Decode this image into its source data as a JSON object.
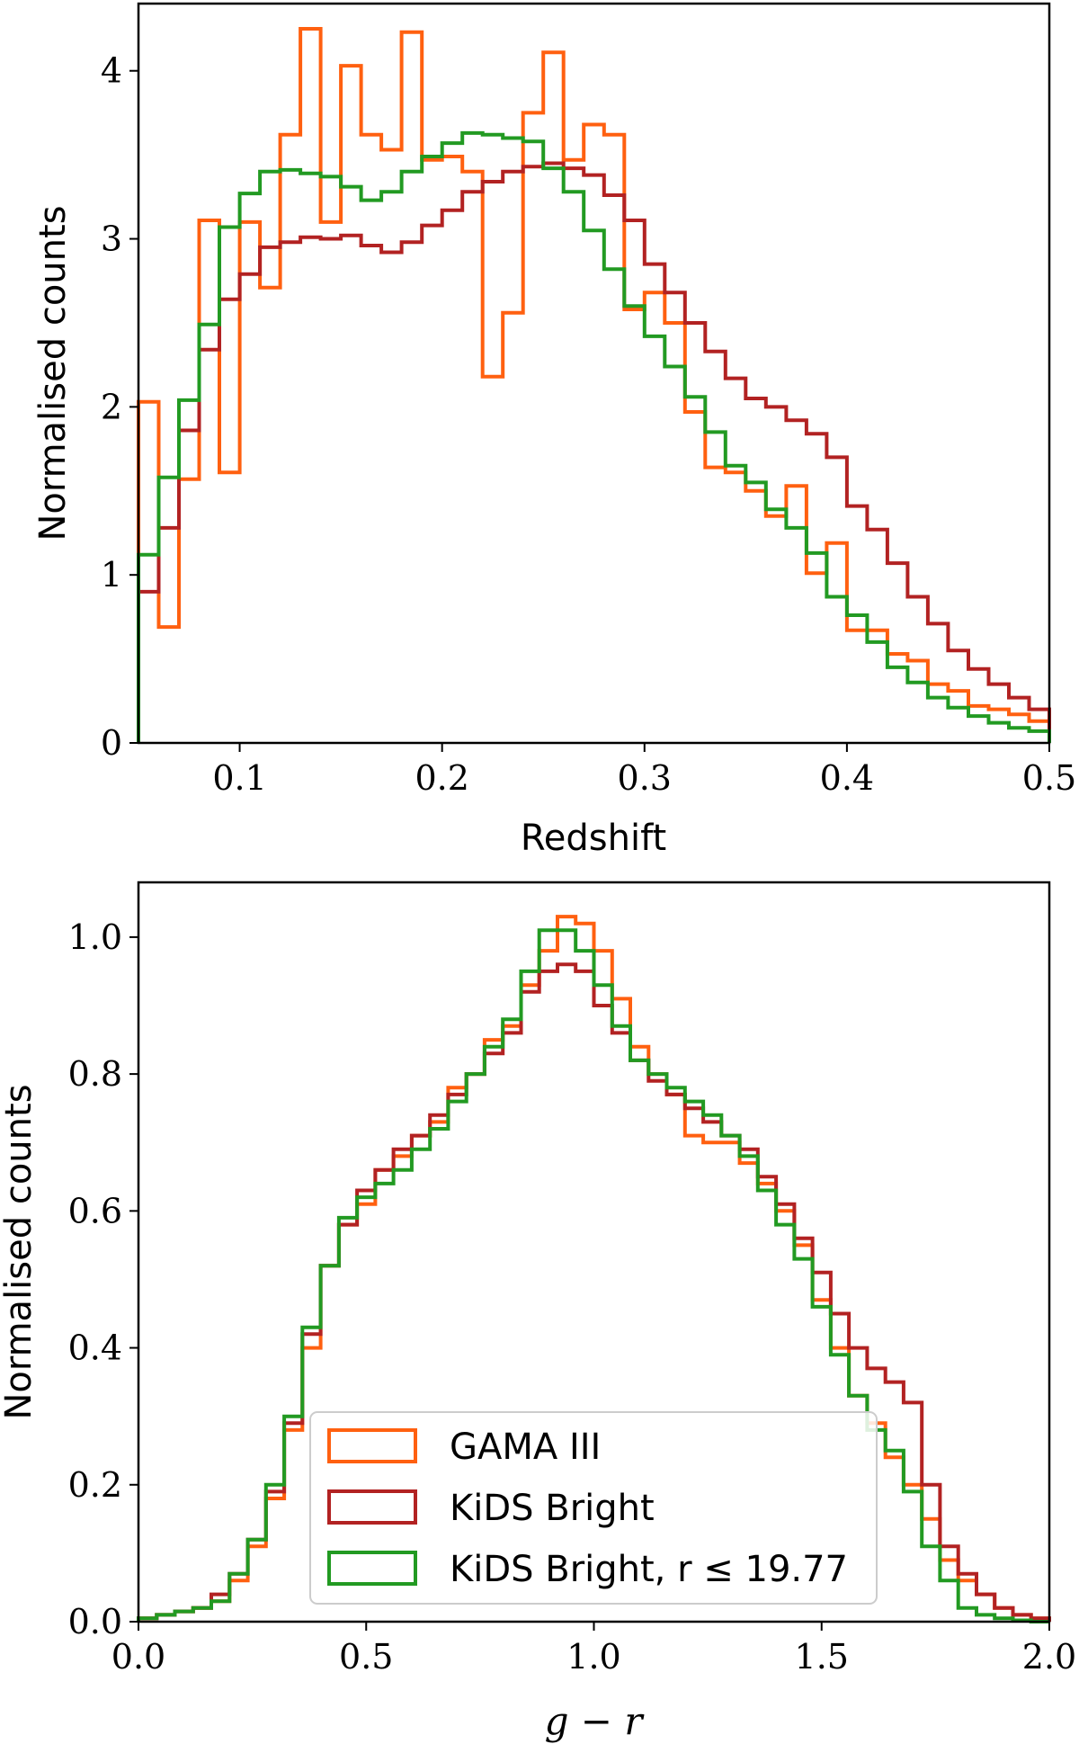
{
  "colors": {
    "gama": "#ff6010",
    "kids": "#b22222",
    "kids_cut": "#229a22"
  },
  "legend": {
    "items": [
      {
        "label": "GAMA III",
        "series": "gama"
      },
      {
        "label": "KiDS Bright",
        "series": "kids"
      },
      {
        "label": "KiDS Bright, r ≤ 19.77",
        "series": "kids_cut"
      }
    ]
  },
  "chart_data": [
    {
      "type": "histogram",
      "title": "",
      "xlabel": "Redshift",
      "ylabel": "Normalised counts",
      "xlim": [
        0.05,
        0.5
      ],
      "ylim": [
        0,
        4.4
      ],
      "xticks": [
        0.1,
        0.2,
        0.3,
        0.4,
        0.5
      ],
      "xtick_labels": [
        "0.1",
        "0.2",
        "0.3",
        "0.4",
        "0.5"
      ],
      "yticks": [
        0,
        1,
        2,
        3,
        4
      ],
      "ytick_labels": [
        "0",
        "1",
        "2",
        "3",
        "4"
      ],
      "bin_start": 0.05,
      "bin_width": 0.01,
      "series": [
        {
          "name": "GAMA III",
          "key": "gama",
          "values": [
            2.03,
            0.69,
            1.57,
            3.11,
            1.61,
            3.1,
            2.71,
            3.62,
            4.25,
            3.1,
            4.03,
            3.62,
            3.53,
            4.23,
            3.47,
            3.49,
            3.4,
            2.18,
            2.56,
            3.75,
            4.11,
            3.47,
            3.68,
            3.62,
            2.58,
            2.68,
            2.5,
            1.97,
            1.64,
            1.61,
            1.5,
            1.35,
            1.53,
            1.01,
            1.19,
            0.67,
            0.67,
            0.53,
            0.49,
            0.35,
            0.31,
            0.22,
            0.2,
            0.17,
            0.13
          ]
        },
        {
          "name": "KiDS Bright",
          "key": "kids",
          "values": [
            0.9,
            1.28,
            1.86,
            2.34,
            2.64,
            2.79,
            2.95,
            2.98,
            3.01,
            3.0,
            3.02,
            2.96,
            2.92,
            2.98,
            3.08,
            3.17,
            3.28,
            3.34,
            3.4,
            3.43,
            3.45,
            3.42,
            3.38,
            3.26,
            3.11,
            2.85,
            2.68,
            2.5,
            2.33,
            2.17,
            2.05,
            2.0,
            1.92,
            1.84,
            1.7,
            1.41,
            1.27,
            1.07,
            0.87,
            0.71,
            0.55,
            0.44,
            0.35,
            0.27,
            0.2
          ]
        },
        {
          "name": "KiDS Bright, r ≤ 19.77",
          "key": "kids_cut",
          "values": [
            1.12,
            1.58,
            2.04,
            2.49,
            3.07,
            3.27,
            3.4,
            3.41,
            3.39,
            3.37,
            3.31,
            3.23,
            3.28,
            3.4,
            3.49,
            3.57,
            3.63,
            3.62,
            3.6,
            3.58,
            3.42,
            3.28,
            3.05,
            2.82,
            2.6,
            2.42,
            2.24,
            2.06,
            1.85,
            1.65,
            1.55,
            1.39,
            1.28,
            1.13,
            0.87,
            0.76,
            0.6,
            0.45,
            0.36,
            0.27,
            0.21,
            0.16,
            0.12,
            0.09,
            0.07
          ]
        }
      ]
    },
    {
      "type": "histogram",
      "title": "",
      "xlabel": "g − r",
      "ylabel": "Normalised counts",
      "xlim": [
        0.0,
        2.0
      ],
      "ylim": [
        0,
        1.08
      ],
      "xticks": [
        0.0,
        0.5,
        1.0,
        1.5,
        2.0
      ],
      "xtick_labels": [
        "0.0",
        "0.5",
        "1.0",
        "1.5",
        "2.0"
      ],
      "yticks": [
        0.0,
        0.2,
        0.4,
        0.6,
        0.8,
        1.0
      ],
      "ytick_labels": [
        "0.0",
        "0.2",
        "0.4",
        "0.6",
        "0.8",
        "1.0"
      ],
      "bin_start": 0.0,
      "bin_width": 0.04,
      "series": [
        {
          "name": "GAMA III",
          "key": "gama",
          "values": [
            0.005,
            0.01,
            0.015,
            0.02,
            0.03,
            0.06,
            0.11,
            0.18,
            0.28,
            0.4,
            0.52,
            0.58,
            0.61,
            0.66,
            0.68,
            0.71,
            0.73,
            0.78,
            0.8,
            0.85,
            0.87,
            0.93,
            0.98,
            1.03,
            1.02,
            0.98,
            0.91,
            0.84,
            0.8,
            0.77,
            0.71,
            0.7,
            0.7,
            0.67,
            0.64,
            0.6,
            0.55,
            0.47,
            0.4,
            0.33,
            0.29,
            0.24,
            0.2,
            0.15,
            0.09,
            0.06,
            0.04,
            0.02,
            0.01,
            0.005
          ]
        },
        {
          "name": "KiDS Bright",
          "key": "kids",
          "values": [
            0.005,
            0.01,
            0.015,
            0.02,
            0.04,
            0.07,
            0.12,
            0.19,
            0.29,
            0.42,
            0.52,
            0.58,
            0.63,
            0.66,
            0.69,
            0.71,
            0.74,
            0.77,
            0.8,
            0.83,
            0.86,
            0.92,
            0.95,
            0.96,
            0.95,
            0.9,
            0.86,
            0.82,
            0.79,
            0.77,
            0.75,
            0.73,
            0.71,
            0.69,
            0.65,
            0.61,
            0.56,
            0.51,
            0.45,
            0.4,
            0.37,
            0.35,
            0.32,
            0.2,
            0.11,
            0.07,
            0.04,
            0.02,
            0.01,
            0.005
          ]
        },
        {
          "name": "KiDS Bright, r ≤ 19.77",
          "key": "kids_cut",
          "values": [
            0.005,
            0.01,
            0.015,
            0.02,
            0.03,
            0.07,
            0.12,
            0.2,
            0.3,
            0.43,
            0.52,
            0.59,
            0.62,
            0.64,
            0.66,
            0.69,
            0.72,
            0.76,
            0.8,
            0.84,
            0.88,
            0.95,
            1.01,
            1.01,
            0.98,
            0.93,
            0.87,
            0.82,
            0.8,
            0.78,
            0.76,
            0.74,
            0.71,
            0.68,
            0.63,
            0.58,
            0.53,
            0.46,
            0.39,
            0.33,
            0.28,
            0.25,
            0.19,
            0.11,
            0.06,
            0.02,
            0.01,
            0.005,
            0.002,
            0.0
          ]
        }
      ]
    }
  ]
}
